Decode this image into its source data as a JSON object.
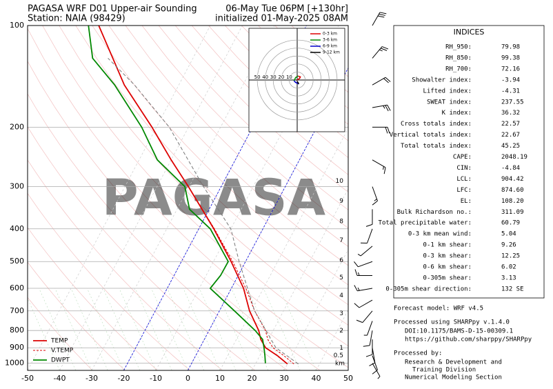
{
  "chart_data": {
    "type": "skewt",
    "title": "PAGASA WRF D01 Upper-air Sounding",
    "subtitle": "Station: NAIA (98429)",
    "title_right": "06-May Tue 06PM [+130hr]",
    "subtitle_right": "initialized 01-May-2025 08AM",
    "watermark": "PAGASA",
    "xlim": [
      -50,
      50
    ],
    "xticks": [
      -50,
      -40,
      -30,
      -20,
      -10,
      0,
      10,
      20,
      30,
      40,
      50
    ],
    "ylim": [
      1050,
      100
    ],
    "yticks": [
      100,
      200,
      300,
      400,
      500,
      600,
      700,
      800,
      900,
      1000
    ],
    "log_y": true,
    "grid": true,
    "legend": "lower left",
    "highlight_isotherms": [
      -20,
      0
    ],
    "highlight_color": "#0000dd",
    "series": [
      {
        "name": "TEMP",
        "color": "#dd0000",
        "dash": false,
        "pressure": [
          1005,
          950,
          900,
          850,
          800,
          700,
          600,
          500,
          400,
          300,
          250,
          200,
          150,
          100
        ],
        "values": [
          30,
          25.5,
          20.5,
          17.6,
          15.5,
          9.4,
          3.8,
          -4.5,
          -15.3,
          -30.2,
          -40,
          -51.4,
          -67,
          -84.8
        ]
      },
      {
        "name": "V.TEMP",
        "color": "#dd0000",
        "dash": true,
        "pressure": [
          1005,
          950,
          900,
          850,
          800,
          700,
          600,
          500,
          400,
          300,
          250,
          200,
          150,
          100
        ],
        "values": [
          32,
          27.5,
          22.8,
          19.8,
          17.6,
          11,
          4.5,
          -4,
          -15.1,
          -30.2,
          -40,
          -51.4,
          -67,
          -84.8
        ]
      },
      {
        "name": "DWPT",
        "color": "#008800",
        "dash": false,
        "pressure": [
          1000,
          950,
          900,
          850,
          800,
          700,
          600,
          550,
          500,
          400,
          350,
          300,
          250,
          200,
          150,
          125,
          100
        ],
        "values": [
          23,
          21.6,
          20,
          18.2,
          14.4,
          4.7,
          -6.6,
          -5.5,
          -5.4,
          -16.4,
          -26.1,
          -31.3,
          -44.3,
          -54.6,
          -70,
          -81.3,
          -88
        ]
      },
      {
        "color": "#777777",
        "dash": true,
        "pressure": [
          1005,
          900,
          700,
          500,
          400,
          300,
          200,
          150,
          125
        ],
        "values": [
          33.4,
          23.7,
          11,
          -2,
          -10,
          -25.5,
          -46,
          -63.8,
          -76.5
        ]
      }
    ],
    "heights": {
      "unit": "km",
      "values": [
        0.5,
        1,
        2,
        3,
        4,
        5,
        6,
        7,
        8,
        9,
        10
      ],
      "pressure": [
        950,
        902,
        802,
        713,
        631,
        558,
        496,
        433,
        380,
        331,
        289
      ]
    },
    "winds": {
      "pressure": [
        1000,
        950,
        900,
        850,
        800,
        750,
        700,
        650,
        600,
        550,
        500,
        450,
        400,
        350,
        300,
        250,
        200,
        175,
        150,
        125,
        100
      ],
      "direction": [
        150,
        160,
        170,
        180,
        190,
        200,
        220,
        240,
        260,
        270,
        250,
        230,
        200,
        180,
        160,
        120,
        90,
        80,
        60,
        40,
        30
      ],
      "speed": [
        8,
        10,
        12,
        12,
        10,
        8,
        10,
        12,
        15,
        15,
        10,
        8,
        10,
        12,
        15,
        15,
        20,
        25,
        20,
        25,
        30
      ]
    },
    "hodograph": {
      "xlim": [
        -60,
        60
      ],
      "ylim": [
        -65,
        65
      ],
      "rings": [
        10,
        20,
        30,
        40,
        50
      ],
      "segments": [
        {
          "name": "0-3 km",
          "color": "#dd0000",
          "u": [
            0,
            3,
            4,
            1
          ],
          "v": [
            0,
            2,
            4,
            5
          ]
        },
        {
          "name": "3-6 km",
          "color": "#008800",
          "u": [
            1,
            -2,
            -4
          ],
          "v": [
            5,
            3,
            -1
          ]
        },
        {
          "name": "6-9 km",
          "color": "#0000cc",
          "u": [
            -4,
            -2,
            0,
            2
          ],
          "v": [
            -1,
            -3,
            -4,
            -5
          ]
        },
        {
          "name": "9-12 km",
          "color": "#000000",
          "u": [
            2,
            1,
            0
          ],
          "v": [
            -5,
            -3,
            -2
          ]
        }
      ]
    }
  },
  "indices": {
    "title": "INDICES",
    "rows": [
      [
        "RH_950:",
        "79.98"
      ],
      [
        "RH_850:",
        "99.38"
      ],
      [
        "RH_700:",
        "72.16"
      ],
      [
        "Showalter index:",
        "-3.94"
      ],
      [
        "Lifted index:",
        "-4.31"
      ],
      [
        "SWEAT index:",
        "237.55"
      ],
      [
        "K index:",
        "36.32"
      ],
      [
        "Cross totals index:",
        "22.57"
      ],
      [
        "Vertical totals index:",
        "22.67"
      ],
      [
        "Total totals index:",
        "45.25"
      ],
      [
        "CAPE:",
        "2048.19"
      ],
      [
        "CIN:",
        "-4.84"
      ],
      [
        "LCL:",
        "904.42"
      ],
      [
        "LFC:",
        "874.60"
      ],
      [
        "EL:",
        "108.20"
      ],
      [
        "Bulk Richardson no.:",
        "311.09"
      ],
      [
        "Total precipitable water:",
        "60.79"
      ],
      [
        "0-3 km mean wind:",
        "5.04"
      ],
      [
        "0-1 km shear:",
        "9.26"
      ],
      [
        "0-3 km shear:",
        "12.25"
      ],
      [
        "0-6 km shear:",
        "6.02"
      ],
      [
        "0-305m shear:",
        "3.13"
      ],
      [
        "0-305m shear direction:",
        "132 SE"
      ]
    ]
  },
  "notes": [
    "Forecast model: WRF v4.5",
    "Processed using SHARPpy v.1.4.0",
    "DOI:10.1175/BAMS-D-15-00309.1",
    "https://github.com/sharppy/SHARPpy",
    "Processed by:",
    "Research & Development and",
    "Training Division",
    "Numerical Modeling Section"
  ]
}
